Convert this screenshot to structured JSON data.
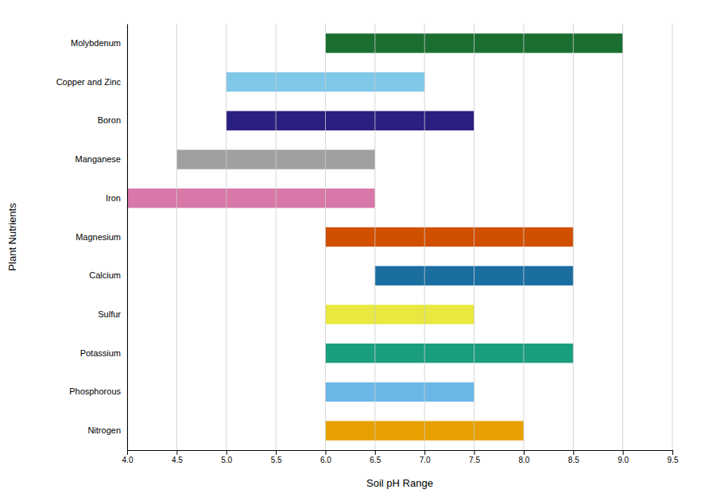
{
  "chart_data": {
    "type": "bar",
    "orientation": "horizontal",
    "xlabel": "Soil pH Range",
    "ylabel": "Plant Nutrients",
    "categories": [
      "Nitrogen",
      "Phosphorous",
      "Potassium",
      "Sulfur",
      "Calcium",
      "Magnesium",
      "Iron",
      "Manganese",
      "Boron",
      "Copper and Zinc",
      "Molybdenum"
    ],
    "values": [
      [
        6.0,
        8.0
      ],
      [
        6.0,
        7.5
      ],
      [
        6.0,
        8.5
      ],
      [
        6.0,
        7.5
      ],
      [
        6.5,
        8.5
      ],
      [
        6.0,
        8.5
      ],
      [
        4.0,
        6.5
      ],
      [
        4.5,
        6.5
      ],
      [
        5.0,
        7.5
      ],
      [
        5.0,
        7.0
      ],
      [
        6.0,
        9.0
      ]
    ],
    "colors": [
      "#E8A000",
      "#6BB8E8",
      "#1A9E7E",
      "#E8E840",
      "#1A6EA0",
      "#D05000",
      "#D878A8",
      "#A0A0A0",
      "#2A2080",
      "#80C8E8",
      "#1A6E30"
    ],
    "xlim": [
      4.0,
      9.5
    ],
    "xticks": [
      {
        "value": 4,
        "label": "4.0"
      },
      4.5,
      {
        "value": 5,
        "label": "5.0"
      },
      5.5,
      {
        "value": 6,
        "label": "6.0"
      },
      6.5,
      {
        "value": 7,
        "label": "7.0"
      },
      7.5,
      {
        "value": 8,
        "label": "8.0"
      },
      8.5,
      {
        "value": 9,
        "label": "9.0"
      },
      9.5
    ],
    "grid": true
  }
}
